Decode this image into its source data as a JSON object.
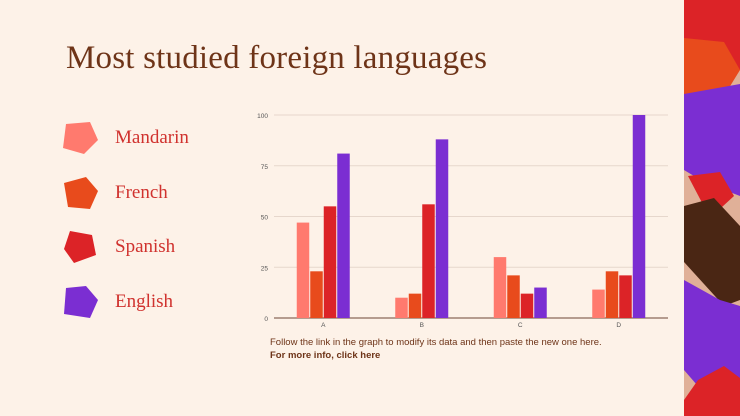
{
  "title": "Most studied foreign languages",
  "colors": {
    "background": "#fdf2e8",
    "title": "#6e3418",
    "label": "#d0322e"
  },
  "legend": [
    {
      "label": "Mandarin",
      "color": "#ff7a6e"
    },
    {
      "label": "French",
      "color": "#e84b1c"
    },
    {
      "label": "Spanish",
      "color": "#dc2327"
    },
    {
      "label": "English",
      "color": "#7b2ed2"
    }
  ],
  "caption": {
    "text": "Follow the link in the graph to modify its data and then paste the new one here.",
    "link": "For more info, click here"
  },
  "chart_data": {
    "type": "bar",
    "categories": [
      "A",
      "B",
      "C",
      "D"
    ],
    "series": [
      {
        "name": "Mandarin",
        "color": "#ff7a6e",
        "values": [
          47,
          10,
          30,
          14
        ]
      },
      {
        "name": "French",
        "color": "#e84b1c",
        "values": [
          23,
          12,
          21,
          23
        ]
      },
      {
        "name": "Spanish",
        "color": "#dc2327",
        "values": [
          55,
          56,
          12,
          21
        ]
      },
      {
        "name": "English",
        "color": "#7b2ed2",
        "values": [
          81,
          88,
          15,
          100
        ]
      }
    ],
    "ylim": [
      0,
      100
    ],
    "yticks": [
      0,
      25,
      50,
      75,
      100
    ],
    "grid": true
  }
}
